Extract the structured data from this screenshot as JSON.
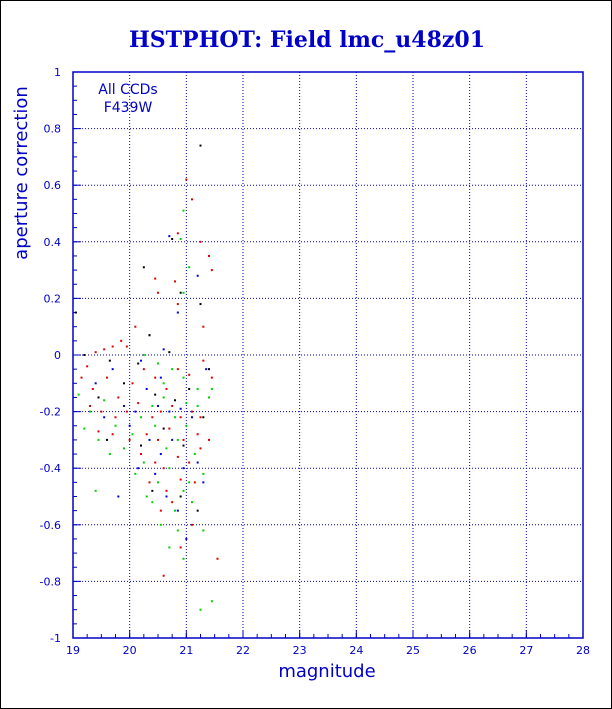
{
  "colors": {
    "axis": "#0000c8",
    "title": "#0000c8",
    "grid": "#0000c8",
    "frame": "#000000",
    "series_red": "#e00000",
    "series_green": "#00d000",
    "series_blue": "#0000e0",
    "series_black": "#000000"
  },
  "chart_data": {
    "type": "scatter",
    "title": "HSTPHOT: Field lmc_u48z01",
    "xlabel": "magnitude",
    "ylabel": "aperture correction",
    "xlim": [
      19,
      28
    ],
    "ylim": [
      -1,
      1
    ],
    "xticks": [
      "19",
      "20",
      "21",
      "22",
      "23",
      "24",
      "25",
      "26",
      "27",
      "28"
    ],
    "yticks": [
      "-1",
      "-0.8",
      "-0.6",
      "-0.4",
      "-0.2",
      "0",
      "0.2",
      "0.4",
      "0.6",
      "0.8",
      "1"
    ],
    "grid": true,
    "annotations": [
      "All CCDs",
      "F439W"
    ],
    "series": [
      {
        "color": "#e00000",
        "points": [
          [
            21.0,
            0.62
          ],
          [
            21.1,
            0.55
          ],
          [
            20.85,
            0.43
          ],
          [
            21.25,
            0.4
          ],
          [
            21.4,
            0.35
          ],
          [
            21.45,
            0.3
          ],
          [
            20.45,
            0.27
          ],
          [
            20.8,
            0.26
          ],
          [
            20.5,
            0.22
          ],
          [
            20.85,
            0.18
          ],
          [
            21.3,
            0.1
          ],
          [
            20.1,
            0.1
          ],
          [
            20.35,
            0.07
          ],
          [
            19.85,
            0.05
          ],
          [
            19.95,
            0.03
          ],
          [
            19.4,
            0.01
          ],
          [
            19.55,
            0.02
          ],
          [
            19.7,
            0.03
          ],
          [
            19.25,
            -0.04
          ],
          [
            19.15,
            -0.08
          ],
          [
            19.6,
            -0.08
          ],
          [
            19.35,
            -0.12
          ],
          [
            19.8,
            -0.15
          ],
          [
            20.05,
            -0.1
          ],
          [
            20.25,
            -0.05
          ],
          [
            20.45,
            -0.08
          ],
          [
            20.65,
            -0.12
          ],
          [
            20.85,
            -0.05
          ],
          [
            21.05,
            -0.07
          ],
          [
            21.3,
            -0.02
          ],
          [
            21.45,
            -0.08
          ],
          [
            19.3,
            -0.18
          ],
          [
            19.5,
            -0.2
          ],
          [
            19.75,
            -0.22
          ],
          [
            19.95,
            -0.2
          ],
          [
            20.15,
            -0.17
          ],
          [
            20.4,
            -0.22
          ],
          [
            20.55,
            -0.2
          ],
          [
            20.75,
            -0.18
          ],
          [
            20.9,
            -0.22
          ],
          [
            21.1,
            -0.2
          ],
          [
            21.25,
            -0.22
          ],
          [
            19.45,
            -0.27
          ],
          [
            19.7,
            -0.28
          ],
          [
            20.0,
            -0.3
          ],
          [
            20.3,
            -0.28
          ],
          [
            20.5,
            -0.3
          ],
          [
            20.7,
            -0.26
          ],
          [
            20.95,
            -0.3
          ],
          [
            21.2,
            -0.28
          ],
          [
            21.4,
            -0.3
          ],
          [
            20.2,
            -0.35
          ],
          [
            20.45,
            -0.38
          ],
          [
            20.6,
            -0.4
          ],
          [
            20.85,
            -0.36
          ],
          [
            21.05,
            -0.38
          ],
          [
            21.25,
            -0.33
          ],
          [
            20.35,
            -0.45
          ],
          [
            20.65,
            -0.48
          ],
          [
            20.9,
            -0.44
          ],
          [
            21.15,
            -0.45
          ],
          [
            20.55,
            -0.55
          ],
          [
            20.75,
            -0.52
          ],
          [
            21.1,
            -0.6
          ],
          [
            20.6,
            -0.78
          ],
          [
            21.55,
            -0.72
          ],
          [
            20.9,
            -0.68
          ]
        ]
      },
      {
        "color": "#00d000",
        "points": [
          [
            20.95,
            0.51
          ],
          [
            20.9,
            0.41
          ],
          [
            21.05,
            0.31
          ],
          [
            20.95,
            0.22
          ],
          [
            20.25,
            0.0
          ],
          [
            20.5,
            -0.03
          ],
          [
            20.6,
            -0.1
          ],
          [
            20.75,
            -0.05
          ],
          [
            20.95,
            -0.08
          ],
          [
            19.1,
            -0.14
          ],
          [
            19.3,
            -0.2
          ],
          [
            19.55,
            -0.16
          ],
          [
            19.75,
            -0.25
          ],
          [
            19.2,
            -0.26
          ],
          [
            19.45,
            -0.3
          ],
          [
            19.65,
            -0.35
          ],
          [
            19.9,
            -0.33
          ],
          [
            20.05,
            -0.28
          ],
          [
            20.2,
            -0.22
          ],
          [
            20.4,
            -0.18
          ],
          [
            20.6,
            -0.15
          ],
          [
            20.8,
            -0.22
          ],
          [
            21.0,
            -0.17
          ],
          [
            21.2,
            -0.12
          ],
          [
            21.4,
            -0.15
          ],
          [
            20.1,
            -0.42
          ],
          [
            20.3,
            -0.5
          ],
          [
            20.5,
            -0.45
          ],
          [
            20.7,
            -0.4
          ],
          [
            20.85,
            -0.3
          ],
          [
            21.0,
            -0.25
          ],
          [
            21.15,
            -0.35
          ],
          [
            21.3,
            -0.42
          ],
          [
            20.55,
            -0.6
          ],
          [
            20.8,
            -0.55
          ],
          [
            20.95,
            -0.48
          ],
          [
            21.1,
            -0.52
          ],
          [
            21.3,
            -0.62
          ],
          [
            20.7,
            -0.68
          ],
          [
            20.95,
            -0.72
          ],
          [
            21.25,
            -0.9
          ],
          [
            21.45,
            -0.87
          ],
          [
            19.4,
            -0.48
          ],
          [
            20.65,
            -0.33
          ],
          [
            20.85,
            -0.62
          ],
          [
            21.05,
            -0.45
          ],
          [
            21.2,
            -0.18
          ],
          [
            20.45,
            -0.25
          ],
          [
            20.25,
            -0.38
          ],
          [
            21.45,
            -0.12
          ],
          [
            20.4,
            -0.52
          ]
        ]
      },
      {
        "color": "#0000e0",
        "points": [
          [
            20.7,
            0.42
          ],
          [
            20.85,
            0.15
          ],
          [
            21.2,
            0.28
          ],
          [
            20.2,
            -0.02
          ],
          [
            20.6,
            0.02
          ],
          [
            21.35,
            -0.05
          ],
          [
            19.4,
            -0.1
          ],
          [
            19.7,
            -0.05
          ],
          [
            19.9,
            -0.18
          ],
          [
            20.1,
            -0.2
          ],
          [
            20.3,
            -0.12
          ],
          [
            20.5,
            -0.18
          ],
          [
            20.7,
            -0.2
          ],
          [
            20.9,
            -0.19
          ],
          [
            21.1,
            -0.22
          ],
          [
            19.55,
            -0.22
          ],
          [
            20.0,
            -0.25
          ],
          [
            20.35,
            -0.3
          ],
          [
            20.55,
            -0.35
          ],
          [
            20.75,
            -0.3
          ],
          [
            20.95,
            -0.4
          ],
          [
            21.2,
            -0.38
          ],
          [
            20.45,
            -0.42
          ],
          [
            20.65,
            -0.5
          ],
          [
            20.85,
            -0.55
          ],
          [
            21.0,
            -0.65
          ],
          [
            19.8,
            -0.5
          ],
          [
            20.15,
            -0.4
          ],
          [
            21.3,
            -0.45
          ],
          [
            20.55,
            -0.08
          ]
        ]
      },
      {
        "color": "#000000",
        "points": [
          [
            21.25,
            0.74
          ],
          [
            20.75,
            0.41
          ],
          [
            20.25,
            0.31
          ],
          [
            20.9,
            0.22
          ],
          [
            21.25,
            0.18
          ],
          [
            20.35,
            0.07
          ],
          [
            19.2,
            0.0
          ],
          [
            19.65,
            -0.02
          ],
          [
            19.05,
            0.15
          ],
          [
            20.15,
            -0.03
          ],
          [
            20.7,
            0.01
          ],
          [
            19.45,
            -0.15
          ],
          [
            19.9,
            -0.1
          ],
          [
            20.45,
            -0.14
          ],
          [
            20.8,
            -0.16
          ],
          [
            21.05,
            -0.12
          ],
          [
            21.4,
            -0.05
          ],
          [
            19.6,
            -0.3
          ],
          [
            20.2,
            -0.32
          ],
          [
            20.6,
            -0.26
          ],
          [
            20.95,
            -0.32
          ],
          [
            21.3,
            -0.22
          ],
          [
            20.4,
            -0.48
          ],
          [
            20.9,
            -0.5
          ],
          [
            21.2,
            -0.55
          ]
        ]
      }
    ]
  }
}
